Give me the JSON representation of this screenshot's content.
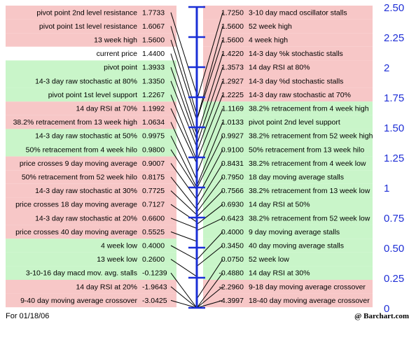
{
  "chart_data": {
    "type": "pivot-ladder",
    "title": "",
    "axis": {
      "min": 0,
      "max": 2.5,
      "ticks": [
        {
          "value": 2.5,
          "label": "2.50"
        },
        {
          "value": 2.25,
          "label": "2.25"
        },
        {
          "value": 2.0,
          "label": "2"
        },
        {
          "value": 1.75,
          "label": "1.75"
        },
        {
          "value": 1.5,
          "label": "1.50"
        },
        {
          "value": 1.25,
          "label": "1.25"
        },
        {
          "value": 1.0,
          "label": "1"
        },
        {
          "value": 0.75,
          "label": "0.75"
        },
        {
          "value": 0.5,
          "label": "0.50"
        },
        {
          "value": 0.25,
          "label": "0.25"
        },
        {
          "value": 0.0,
          "label": "0"
        }
      ]
    },
    "colors": {
      "above_price": "#f7c7c7",
      "below_price": "#c9f5c9",
      "current": "#ffffff",
      "axis": "#1a2fd6",
      "connector": "#000000"
    },
    "left": [
      {
        "label": "pivot point 2nd level resistance",
        "value": "1.7733",
        "y": 1.7733,
        "zone": "above"
      },
      {
        "label": "pivot point 1st level resistance",
        "value": "1.6067",
        "y": 1.6067,
        "zone": "above"
      },
      {
        "label": "13 week high",
        "value": "1.5600",
        "y": 1.56,
        "zone": "above"
      },
      {
        "label": "current price",
        "value": "1.4400",
        "y": 1.44,
        "zone": "current"
      },
      {
        "label": "pivot point",
        "value": "1.3933",
        "y": 1.3933,
        "zone": "below"
      },
      {
        "label": "14-3 day raw stochastic at 80%",
        "value": "1.3350",
        "y": 1.335,
        "zone": "below"
      },
      {
        "label": "pivot point 1st level support",
        "value": "1.2267",
        "y": 1.2267,
        "zone": "below"
      },
      {
        "label": "14 day RSI at 70%",
        "value": "1.1992",
        "y": 1.1992,
        "zone": "above"
      },
      {
        "label": "38.2% retracement from 13 week high",
        "value": "1.0634",
        "y": 1.0634,
        "zone": "above"
      },
      {
        "label": "14-3 day raw stochastic at 50%",
        "value": "0.9975",
        "y": 0.9975,
        "zone": "below"
      },
      {
        "label": "50% retracement from 4 week hilo",
        "value": "0.9800",
        "y": 0.98,
        "zone": "below"
      },
      {
        "label": "price crosses 9 day moving average",
        "value": "0.9007",
        "y": 0.9007,
        "zone": "above"
      },
      {
        "label": "50% retracement from 52 week hilo",
        "value": "0.8175",
        "y": 0.8175,
        "zone": "above"
      },
      {
        "label": "14-3 day raw stochastic at 30%",
        "value": "0.7725",
        "y": 0.7725,
        "zone": "above"
      },
      {
        "label": "price crosses 18 day moving average",
        "value": "0.7127",
        "y": 0.7127,
        "zone": "above"
      },
      {
        "label": "14-3 day raw stochastic at 20%",
        "value": "0.6600",
        "y": 0.66,
        "zone": "above"
      },
      {
        "label": "price crosses 40 day moving average",
        "value": "0.5525",
        "y": 0.5525,
        "zone": "above"
      },
      {
        "label": "4 week low",
        "value": "0.4000",
        "y": 0.4,
        "zone": "below"
      },
      {
        "label": "13 week low",
        "value": "0.2600",
        "y": 0.26,
        "zone": "below"
      },
      {
        "label": "3-10-16 day macd mov. avg. stalls",
        "value": "-0.1239",
        "y": -0.1239,
        "zone": "below"
      },
      {
        "label": "14 day RSI at 20%",
        "value": "-1.9643",
        "y": -1.9643,
        "zone": "above"
      },
      {
        "label": "9-40 day moving average crossover",
        "value": "-3.0425",
        "y": -3.0425,
        "zone": "above"
      }
    ],
    "right": [
      {
        "label": "3-10 day macd oscillator stalls",
        "value": "1.7250",
        "y": 1.725,
        "zone": "above"
      },
      {
        "label": "52 week high",
        "value": "1.5600",
        "y": 1.56,
        "zone": "above"
      },
      {
        "label": "4 week high",
        "value": "1.5600",
        "y": 1.56,
        "zone": "above"
      },
      {
        "label": "14-3 day %k stochastic stalls",
        "value": "1.4220",
        "y": 1.422,
        "zone": "above"
      },
      {
        "label": "14 day RSI at 80%",
        "value": "1.3573",
        "y": 1.3573,
        "zone": "above"
      },
      {
        "label": "14-3 day %d stochastic stalls",
        "value": "1.2927",
        "y": 1.2927,
        "zone": "above"
      },
      {
        "label": "14-3 day raw stochastic at 70%",
        "value": "1.2225",
        "y": 1.2225,
        "zone": "above"
      },
      {
        "label": "38.2% retracement from 4 week high",
        "value": "1.1169",
        "y": 1.1169,
        "zone": "below"
      },
      {
        "label": "pivot point 2nd level support",
        "value": "1.0133",
        "y": 1.0133,
        "zone": "below"
      },
      {
        "label": "38.2% retracement from 52 week high",
        "value": "0.9927",
        "y": 0.9927,
        "zone": "below"
      },
      {
        "label": "50% retracement from 13 week hilo",
        "value": "0.9100",
        "y": 0.91,
        "zone": "below"
      },
      {
        "label": "38.2% retracement from 4 week low",
        "value": "0.8431",
        "y": 0.8431,
        "zone": "below"
      },
      {
        "label": "18 day moving average stalls",
        "value": "0.7950",
        "y": 0.795,
        "zone": "below"
      },
      {
        "label": "38.2% retracement from 13 week low",
        "value": "0.7566",
        "y": 0.7566,
        "zone": "below"
      },
      {
        "label": "14 day RSI at 50%",
        "value": "0.6930",
        "y": 0.693,
        "zone": "below"
      },
      {
        "label": "38.2% retracement from 52 week low",
        "value": "0.6423",
        "y": 0.6423,
        "zone": "below"
      },
      {
        "label": "9 day moving average stalls",
        "value": "0.4000",
        "y": 0.4,
        "zone": "below"
      },
      {
        "label": "40 day moving average stalls",
        "value": "0.3450",
        "y": 0.345,
        "zone": "below"
      },
      {
        "label": "52 week low",
        "value": "0.0750",
        "y": 0.075,
        "zone": "below"
      },
      {
        "label": "14 day RSI at 30%",
        "value": "-0.4880",
        "y": -0.488,
        "zone": "below"
      },
      {
        "label": "9-18 day moving average crossover",
        "value": "-2.2960",
        "y": -2.296,
        "zone": "above"
      },
      {
        "label": "18-40 day moving average crossover",
        "value": "-4.3997",
        "y": -4.3997,
        "zone": "above"
      }
    ]
  },
  "footer": {
    "date": "For 01/18/06",
    "brand": "@ Barchart.com"
  }
}
